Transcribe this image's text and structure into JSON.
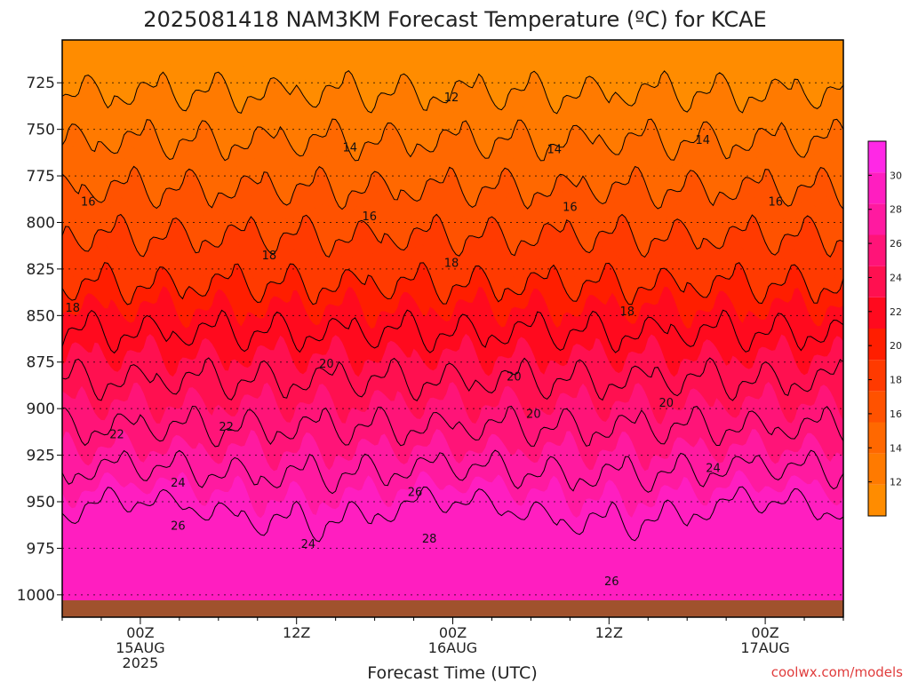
{
  "title": "2025081418 NAM3KM Forecast Temperature (ºC) for KCAE",
  "xlabel": "Forecast Time (UTC)",
  "credit": "coolwx.com/models",
  "colors": {
    "palette": [
      "#ff8c00",
      "#ff7a00",
      "#ff6800",
      "#ff5200",
      "#ff3a00",
      "#ff1e00",
      "#ff0a1e",
      "#ff1050",
      "#ff1478",
      "#ff1aa0",
      "#ff1ec0",
      "#ff28e6"
    ],
    "ground": "#a0522d",
    "contour": "#000000"
  },
  "chart_data": {
    "type": "heatmap",
    "title": "2025081418 NAM3KM Forecast Temperature (ºC) for KCAE",
    "xlabel": "Forecast Time (UTC)",
    "ylabel": "",
    "x_time_labels": [
      {
        "hour": 6,
        "lines": [
          "00Z",
          "15AUG",
          "2025"
        ]
      },
      {
        "hour": 18,
        "lines": [
          "12Z"
        ]
      },
      {
        "hour": 30,
        "lines": [
          "00Z",
          "16AUG"
        ]
      },
      {
        "hour": 42,
        "lines": [
          "12Z"
        ]
      },
      {
        "hour": 54,
        "lines": [
          "00Z",
          "17AUG"
        ]
      }
    ],
    "xlim_hours": [
      0,
      60
    ],
    "y_ticks_hPa": [
      725,
      750,
      775,
      800,
      825,
      850,
      875,
      900,
      925,
      950,
      975,
      1000
    ],
    "ylim_hPa": [
      702,
      1012
    ],
    "grid": "dotted horizontal lines at pressure ticks",
    "colorbar": {
      "ticks": [
        12,
        14,
        16,
        18,
        20,
        22,
        24,
        26,
        28,
        30
      ],
      "range": [
        10,
        32
      ],
      "placement": "right"
    },
    "contour_levels": [
      12,
      14,
      16,
      18,
      20,
      22,
      24,
      26,
      28,
      30
    ],
    "contour_labels": [
      {
        "value": "12",
        "hour": 29.9,
        "hPa": 733
      },
      {
        "value": "14",
        "hour": 22.1,
        "hPa": 760
      },
      {
        "value": "14",
        "hour": 37.8,
        "hPa": 761
      },
      {
        "value": "14",
        "hour": 49.2,
        "hPa": 756
      },
      {
        "value": "16",
        "hour": 2.0,
        "hPa": 789
      },
      {
        "value": "16",
        "hour": 23.6,
        "hPa": 797
      },
      {
        "value": "16",
        "hour": 39.0,
        "hPa": 792
      },
      {
        "value": "16",
        "hour": 54.8,
        "hPa": 789
      },
      {
        "value": "18",
        "hour": 15.9,
        "hPa": 818
      },
      {
        "value": "18",
        "hour": 29.9,
        "hPa": 822
      },
      {
        "value": "18",
        "hour": 0.8,
        "hPa": 846
      },
      {
        "value": "18",
        "hour": 43.4,
        "hPa": 848
      },
      {
        "value": "20",
        "hour": 20.3,
        "hPa": 876
      },
      {
        "value": "20",
        "hour": 34.7,
        "hPa": 883
      },
      {
        "value": "20",
        "hour": 36.2,
        "hPa": 903
      },
      {
        "value": "20",
        "hour": 46.4,
        "hPa": 897
      },
      {
        "value": "22",
        "hour": 4.2,
        "hPa": 914
      },
      {
        "value": "22",
        "hour": 12.6,
        "hPa": 910
      },
      {
        "value": "24",
        "hour": 8.9,
        "hPa": 940
      },
      {
        "value": "24",
        "hour": 18.9,
        "hPa": 973
      },
      {
        "value": "24",
        "hour": 50.0,
        "hPa": 932
      },
      {
        "value": "26",
        "hour": 8.9,
        "hPa": 963
      },
      {
        "value": "26",
        "hour": 27.1,
        "hPa": 945
      },
      {
        "value": "26",
        "hour": 42.2,
        "hPa": 993
      },
      {
        "value": "28",
        "hour": 28.2,
        "hPa": 970
      }
    ]
  }
}
